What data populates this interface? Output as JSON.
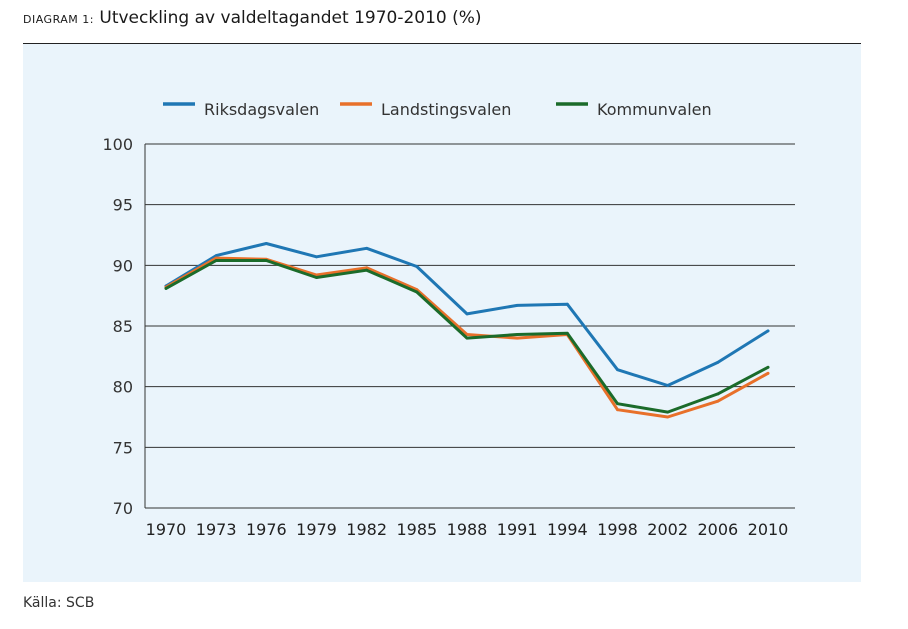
{
  "title": {
    "label": "Diagram 1:",
    "text": "Utveckling av valdeltagandet 1970-2010 (%)"
  },
  "source": "Källa: SCB",
  "chart_data": {
    "type": "line",
    "categories": [
      "1970",
      "1973",
      "1976",
      "1979",
      "1982",
      "1985",
      "1988",
      "1991",
      "1994",
      "1998",
      "2002",
      "2006",
      "2010"
    ],
    "ylim": [
      70,
      100
    ],
    "yticks": [
      70,
      75,
      80,
      85,
      90,
      95,
      100
    ],
    "grid": true,
    "legend_position": "top",
    "series": [
      {
        "name": "Riksdagsvalen",
        "color": "#1f77b4",
        "values": [
          88.3,
          90.8,
          91.8,
          90.7,
          91.4,
          89.9,
          86.0,
          86.7,
          86.8,
          81.4,
          80.1,
          82.0,
          84.6
        ]
      },
      {
        "name": "Landstingsvalen",
        "color": "#e8702a",
        "values": [
          88.2,
          90.6,
          90.5,
          89.2,
          89.8,
          88.0,
          84.3,
          84.0,
          84.3,
          78.1,
          77.5,
          78.8,
          81.1
        ]
      },
      {
        "name": "Kommunvalen",
        "color": "#1b6b2a",
        "values": [
          88.1,
          90.4,
          90.4,
          89.0,
          89.6,
          87.8,
          84.0,
          84.3,
          84.4,
          78.6,
          77.9,
          79.4,
          81.6
        ]
      }
    ]
  }
}
